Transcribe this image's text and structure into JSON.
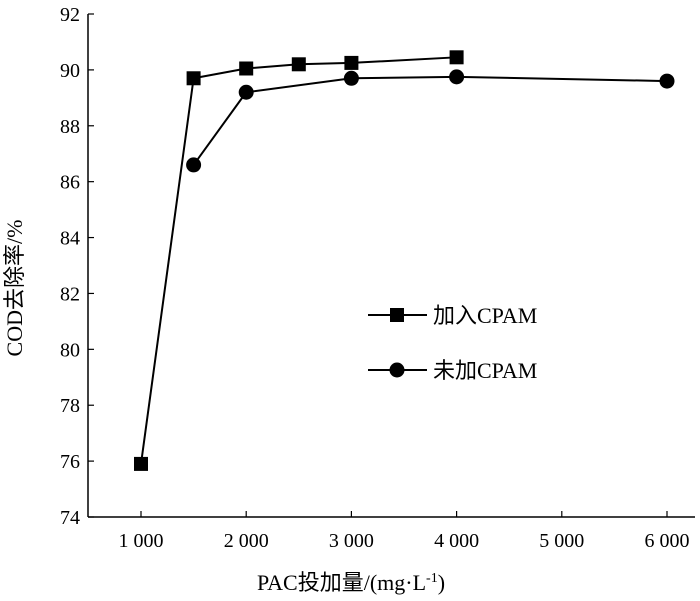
{
  "chart_data": {
    "type": "line",
    "title": "",
    "xlabel": "PAC投加量/(mg·L-1)",
    "xlabel_main": "PAC投加量/(mg·L",
    "xlabel_sup": "-1",
    "xlabel_close": ")",
    "ylabel": "COD去除率/%",
    "xlim": [
      500,
      6300
    ],
    "ylim": [
      74,
      92
    ],
    "xticks": [
      1000,
      2000,
      3000,
      4000,
      5000,
      6000
    ],
    "xtick_labels": [
      "1 000",
      "2 000",
      "3 000",
      "4 000",
      "5 000",
      "6 000"
    ],
    "yticks": [
      74,
      76,
      78,
      80,
      82,
      84,
      86,
      88,
      90,
      92
    ],
    "ytick_labels": [
      "74",
      "76",
      "78",
      "80",
      "82",
      "84",
      "86",
      "88",
      "90",
      "92"
    ],
    "grid": false,
    "legend_position": "center-right",
    "series": [
      {
        "name": "加入CPAM",
        "marker": "square",
        "color": "#000000",
        "x": [
          1000,
          1500,
          2000,
          2500,
          3000,
          4000
        ],
        "y": [
          75.9,
          89.7,
          90.05,
          90.2,
          90.25,
          90.45
        ]
      },
      {
        "name": "未加CPAM",
        "marker": "circle",
        "color": "#000000",
        "x": [
          1500,
          2000,
          3000,
          4000,
          6000
        ],
        "y": [
          86.6,
          89.2,
          89.7,
          89.75,
          89.6
        ]
      }
    ]
  }
}
